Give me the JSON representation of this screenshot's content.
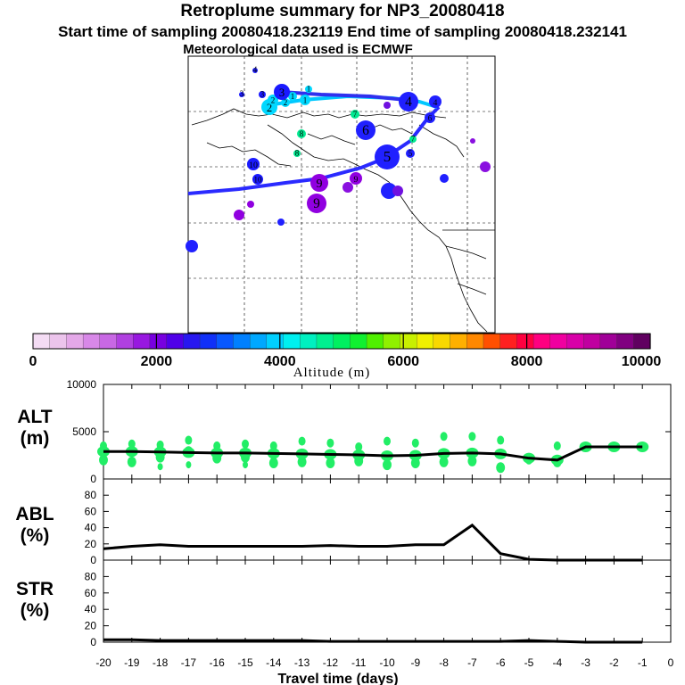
{
  "header": {
    "title": "Retroplume summary for NP3_20080418",
    "sampling": "Start time of sampling 20080418.232119      End time of sampling 20080418.232141",
    "met": "Meteorological data used is ECMWF"
  },
  "chart_data": [
    {
      "type": "map",
      "description_labels": "trajectory day markers",
      "trajectory_days": [
        "1",
        "2",
        "3",
        "4",
        "5",
        "6",
        "7",
        "8",
        "9",
        "10"
      ],
      "clusters": [
        {
          "label": "1",
          "color": "#00d8ff",
          "count": 3
        },
        {
          "label": "2",
          "color": "#00d8ff",
          "count": 3
        },
        {
          "label": "3",
          "color": "#1a1aff",
          "count": 4
        },
        {
          "label": "4",
          "color": "#2020ff",
          "count": 3
        },
        {
          "label": "5",
          "color": "#2020ff",
          "count": 2
        },
        {
          "label": "6",
          "color": "#2020ff",
          "count": 2
        },
        {
          "label": "7",
          "color": "#00e890",
          "count": 2
        },
        {
          "label": "8",
          "color": "#00e890",
          "count": 2
        },
        {
          "label": "9",
          "color": "#9000e0",
          "count": 3
        },
        {
          "label": "10",
          "color": "#1a1aff",
          "count": 2
        }
      ]
    },
    {
      "type": "colorbar",
      "xlabel": "Altitude (m)",
      "range": [
        0,
        10000
      ],
      "tick_labels": [
        "0",
        "2000",
        "4000",
        "6000",
        "8000",
        "10000"
      ],
      "colors": [
        "#f4dcf4",
        "#ecc4ec",
        "#e4a8e8",
        "#d888e8",
        "#c868e4",
        "#b040e0",
        "#9818e0",
        "#7800e0",
        "#5000e8",
        "#2818f0",
        "#1030f8",
        "#0858ff",
        "#0080ff",
        "#00a8ff",
        "#00d0ff",
        "#00f0f0",
        "#00f0c0",
        "#00f090",
        "#00f060",
        "#10f030",
        "#50f000",
        "#90f000",
        "#c8f000",
        "#f0f000",
        "#f8d800",
        "#ffb000",
        "#ff8800",
        "#ff5000",
        "#ff2020",
        "#ff0040",
        "#ff0080",
        "#f000a0",
        "#d800a8",
        "#c000a0",
        "#a00098",
        "#800080",
        "#600060"
      ]
    },
    {
      "type": "line",
      "name": "ALT",
      "ylabel": "ALT\n(m)",
      "ylim": [
        0,
        10000
      ],
      "yticks": [
        "10000",
        "5000",
        "0"
      ],
      "x": [
        -20,
        -19,
        -18,
        -17,
        -16,
        -15,
        -14,
        -13,
        -12,
        -11,
        -10,
        -9,
        -8,
        -7,
        -6,
        -5,
        -4,
        -3,
        -2,
        -1
      ],
      "values": [
        2900,
        2900,
        2850,
        2800,
        2750,
        2750,
        2700,
        2650,
        2600,
        2550,
        2450,
        2500,
        2700,
        2750,
        2650,
        2200,
        2000,
        3400,
        3400,
        3400
      ],
      "spread_points": [
        {
          "x": -20,
          "ys": [
            3500,
            2000
          ]
        },
        {
          "x": -19,
          "ys": [
            3700,
            1800
          ]
        },
        {
          "x": -18,
          "ys": [
            3600,
            2300,
            1300
          ]
        },
        {
          "x": -17,
          "ys": [
            4100,
            2900,
            1500
          ]
        },
        {
          "x": -16,
          "ys": [
            3500,
            2200
          ]
        },
        {
          "x": -15,
          "ys": [
            3700,
            2300,
            1500
          ]
        },
        {
          "x": -14,
          "ys": [
            3500,
            1700
          ]
        },
        {
          "x": -13,
          "ys": [
            4000,
            1800
          ]
        },
        {
          "x": -12,
          "ys": [
            3800,
            1700
          ]
        },
        {
          "x": -11,
          "ys": [
            3400,
            1900
          ]
        },
        {
          "x": -10,
          "ys": [
            4000,
            1500
          ]
        },
        {
          "x": -9,
          "ys": [
            3800,
            1700
          ]
        },
        {
          "x": -8,
          "ys": [
            4500,
            1800
          ]
        },
        {
          "x": -7,
          "ys": [
            4500,
            1900
          ]
        },
        {
          "x": -6,
          "ys": [
            4100,
            1200
          ]
        },
        {
          "x": -5,
          "ys": [
            2000
          ]
        },
        {
          "x": -4,
          "ys": [
            3500,
            1800
          ]
        },
        {
          "x": -3,
          "ys": [
            3400
          ]
        },
        {
          "x": -2,
          "ys": [
            3400
          ]
        },
        {
          "x": -1,
          "ys": [
            3400
          ]
        }
      ],
      "marker_color": "#22ee66"
    },
    {
      "type": "line",
      "name": "ABL",
      "ylabel": "ABL\n(%)",
      "ylim": [
        0,
        100
      ],
      "yticks": [
        "80",
        "60",
        "40",
        "20",
        "0"
      ],
      "x": [
        -20,
        -19,
        -18,
        -17,
        -16,
        -15,
        -14,
        -13,
        -12,
        -11,
        -10,
        -9,
        -8,
        -7,
        -6,
        -5,
        -4,
        -3,
        -2,
        -1
      ],
      "values": [
        14,
        17,
        19,
        17,
        17,
        17,
        17,
        17,
        18,
        17,
        17,
        19,
        19,
        43,
        8,
        1,
        0,
        0,
        0,
        0
      ]
    },
    {
      "type": "line",
      "name": "STR",
      "ylabel": "STR\n(%)",
      "ylim": [
        0,
        100
      ],
      "yticks": [
        "80",
        "60",
        "40",
        "20",
        "0"
      ],
      "x": [
        -20,
        -19,
        -18,
        -17,
        -16,
        -15,
        -14,
        -13,
        -12,
        -11,
        -10,
        -9,
        -8,
        -7,
        -6,
        -5,
        -4,
        -3,
        -2,
        -1
      ],
      "values": [
        3,
        3,
        2,
        2,
        2,
        2,
        2,
        2,
        1,
        1,
        1,
        1,
        1,
        1,
        1,
        2,
        1,
        0,
        0,
        0
      ],
      "xlabel": "Travel time (days)",
      "xticks": [
        "-20",
        "-19",
        "-18",
        "-17",
        "-16",
        "-15",
        "-14",
        "-13",
        "-12",
        "-11",
        "-10",
        "-9",
        "-8",
        "-7",
        "-6",
        "-5",
        "-4",
        "-3",
        "-2",
        "-1",
        "0"
      ]
    }
  ]
}
